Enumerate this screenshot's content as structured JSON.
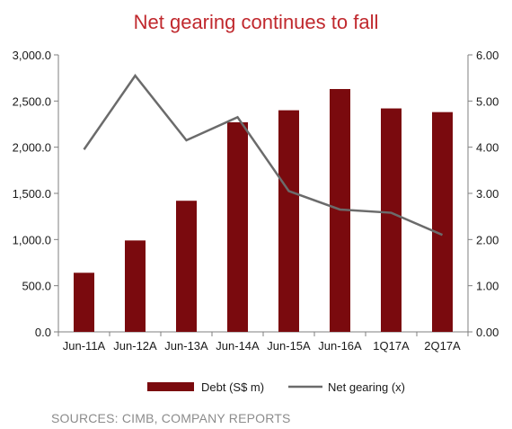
{
  "chart_data": {
    "type": "bar",
    "title": "Net gearing continues to fall",
    "categories": [
      "Jun-11A",
      "Jun-12A",
      "Jun-13A",
      "Jun-14A",
      "Jun-15A",
      "Jun-16A",
      "1Q17A",
      "2Q17A"
    ],
    "series": [
      {
        "name": "Debt (S$ m)",
        "type": "bar",
        "axis": "left",
        "values": [
          640,
          990,
          1420,
          2270,
          2400,
          2630,
          2420,
          2380
        ]
      },
      {
        "name": "Net gearing (x)",
        "type": "line",
        "axis": "right",
        "values": [
          3.95,
          5.55,
          4.15,
          4.65,
          3.05,
          2.65,
          2.58,
          2.1
        ]
      }
    ],
    "y_left": {
      "ylim": [
        0,
        3000
      ],
      "ticks": [
        0,
        500,
        1000,
        1500,
        2000,
        2500,
        3000
      ],
      "tick_labels": [
        "0.0",
        "500.0",
        "1,000.0",
        "1,500.0",
        "2,000.0",
        "2,500.0",
        "3,000.0"
      ]
    },
    "y_right": {
      "ylim": [
        0,
        6
      ],
      "ticks": [
        0,
        1,
        2,
        3,
        4,
        5,
        6
      ],
      "tick_labels": [
        "0.00",
        "1.00",
        "2.00",
        "3.00",
        "4.00",
        "5.00",
        "6.00"
      ]
    },
    "grid": false,
    "legend_position": "bottom",
    "colors": {
      "title": "#c0282d",
      "bar": "#7a0a0e",
      "line": "#6b6b6b",
      "axis": "#7f7f7f"
    },
    "source": "SOURCES: CIMB, COMPANY REPORTS"
  }
}
